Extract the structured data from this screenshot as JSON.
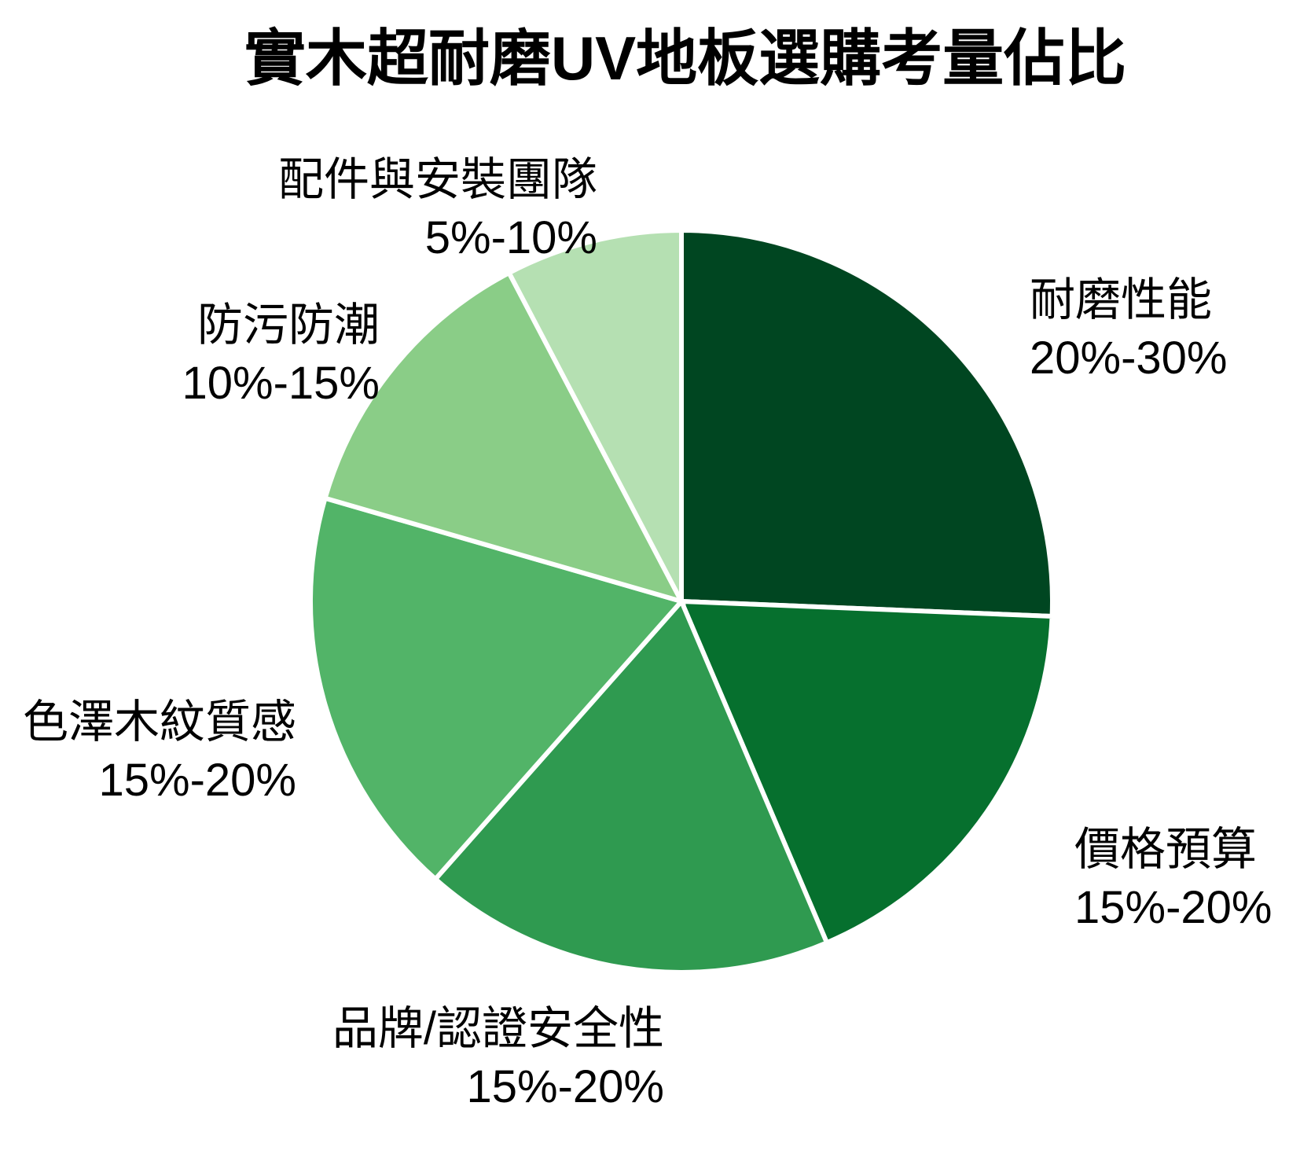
{
  "page": {
    "background_color": "#FFFFFF",
    "text_color": "#000000"
  },
  "chart_data": {
    "type": "pie",
    "title": "實木超耐磨UV地板選購考量佔比",
    "direction": "clockwise",
    "start_angle_deg": 0,
    "labels_position": "outside",
    "legend_position": "none",
    "slice_separator_color": "#FFFFFF",
    "slices": [
      {
        "name": "耐磨性能",
        "range_label": "20%-30%",
        "range_pct": [
          20,
          30
        ],
        "value_mid_pct": 25,
        "color": "#004621"
      },
      {
        "name": "價格預算",
        "range_label": "15%-20%",
        "range_pct": [
          15,
          20
        ],
        "value_mid_pct": 17.5,
        "color": "#06702E"
      },
      {
        "name": "品牌/認證安全性",
        "range_label": "15%-20%",
        "range_pct": [
          15,
          20
        ],
        "value_mid_pct": 17.5,
        "color": "#2F9A50"
      },
      {
        "name": "色澤木紋質感",
        "range_label": "15%-20%",
        "range_pct": [
          15,
          20
        ],
        "value_mid_pct": 17.5,
        "color": "#52B468"
      },
      {
        "name": "防污防潮",
        "range_label": "10%-15%",
        "range_pct": [
          10,
          15
        ],
        "value_mid_pct": 12.5,
        "color": "#8ACD87"
      },
      {
        "name": "配件與安裝團隊",
        "range_label": "5%-10%",
        "range_pct": [
          5,
          10
        ],
        "value_mid_pct": 7.5,
        "color": "#B5E0B2"
      }
    ]
  }
}
